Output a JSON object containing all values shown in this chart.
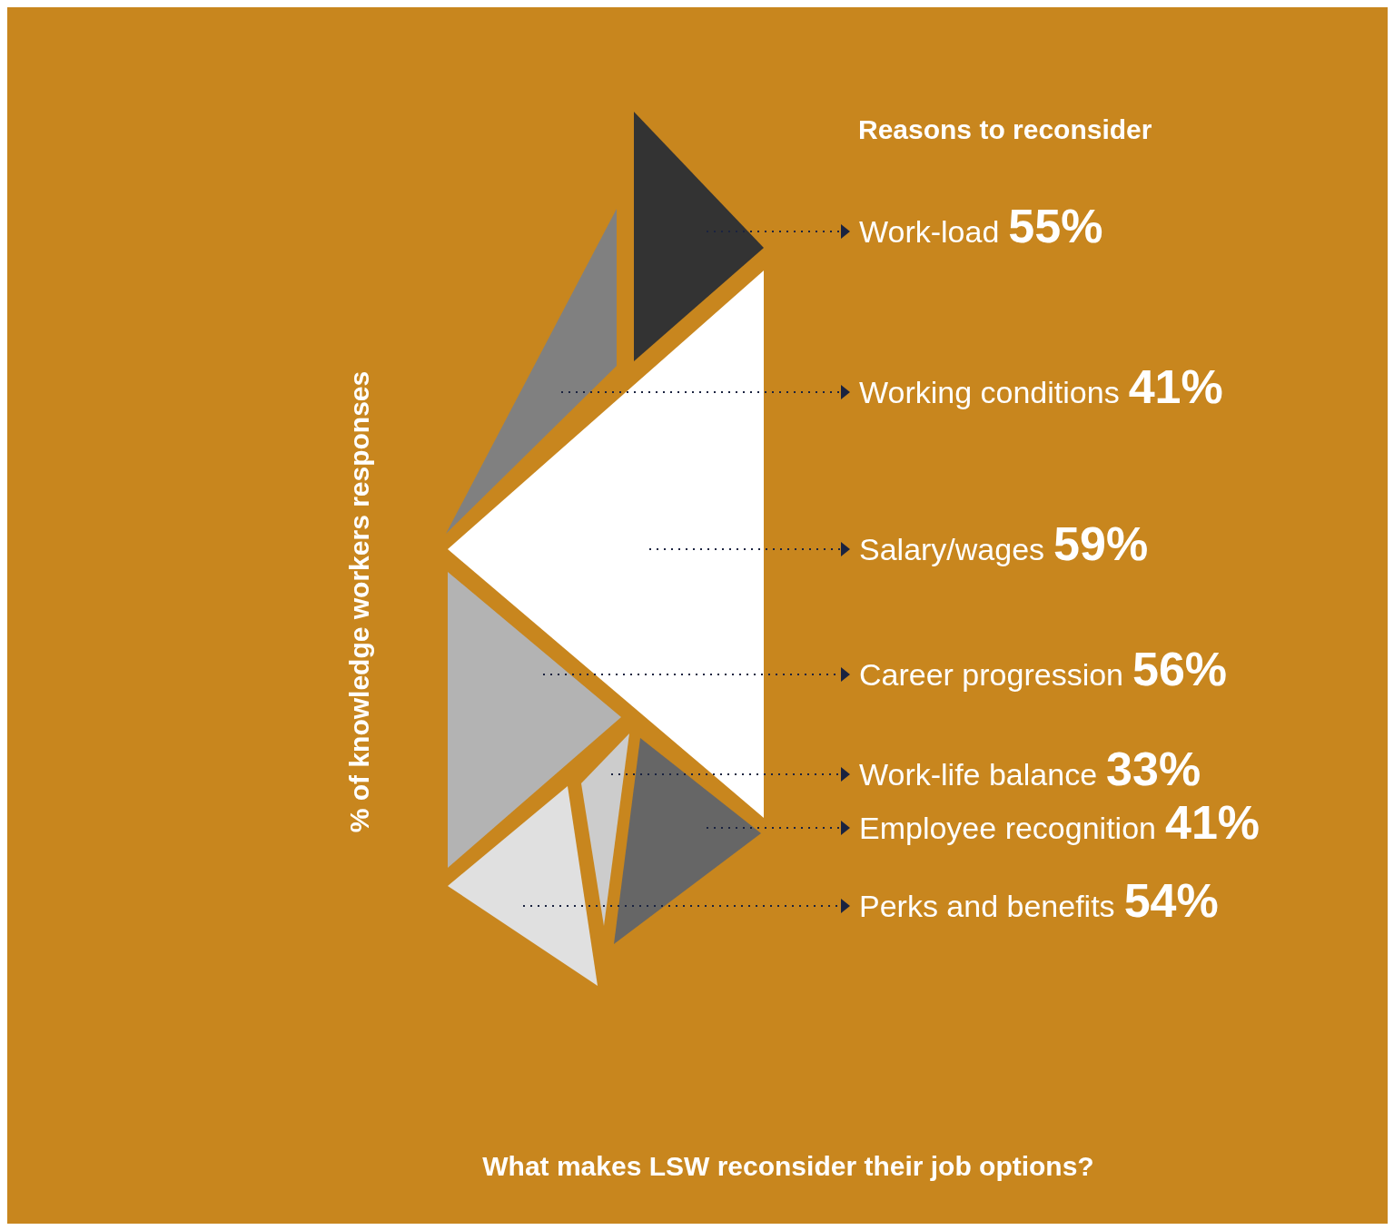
{
  "chart_data": {
    "type": "other",
    "title": "Reasons to reconsider",
    "ylabel": "% of knowledge workers responses",
    "categories": [
      "Work-load",
      "Working conditions",
      "Salary/wages",
      "Career progression",
      "Work-life balance",
      "Employee recognition",
      "Perks and benefits"
    ],
    "values": [
      55,
      41,
      59,
      56,
      33,
      41,
      54
    ],
    "value_labels": [
      "55%",
      "41%",
      "59%",
      "56%",
      "33%",
      "41%",
      "54%"
    ],
    "colors": [
      "#333333",
      "#808080",
      "#ffffff",
      "#b3b3b3",
      "#cccccc",
      "#666666",
      "#e0e0e0"
    ],
    "annotations": [
      "What makes LSW reconsider their job options?"
    ]
  }
}
